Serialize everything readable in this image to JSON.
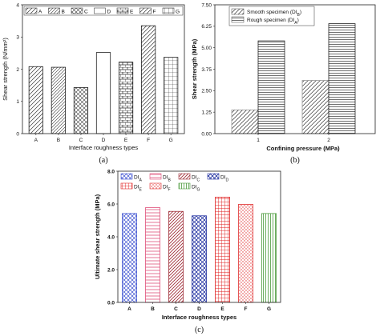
{
  "chart_data": [
    {
      "type": "bar",
      "caption": "(a)",
      "xlabel": "Interface  roughness types",
      "ylabel": "Shear strength (N/mm²)",
      "categories": [
        "A",
        "B",
        "C",
        "D",
        "E",
        "F",
        "G"
      ],
      "values": [
        2.08,
        2.06,
        1.43,
        2.52,
        2.22,
        3.35,
        2.37
      ],
      "ylim": [
        0,
        4
      ],
      "yticks": [
        "0",
        "1",
        "2",
        "3",
        "4"
      ],
      "legend": [
        "A",
        "B",
        "C",
        "D",
        "E",
        "F",
        "G"
      ],
      "legend_position": "top",
      "grid": false
    },
    {
      "type": "bar",
      "caption": "(b)",
      "xlabel": "Confining pressure (MPa)",
      "ylabel": "Shear strength (MPa)",
      "categories": [
        "1",
        "2"
      ],
      "series": [
        {
          "name": "Smooth specimen (DI",
          "name_sub": "B",
          "name_end": ")",
          "values": [
            1.38,
            3.1
          ]
        },
        {
          "name": "Rough specimen (DI",
          "name_sub": "A",
          "name_end": ")",
          "values": [
            5.4,
            6.4
          ]
        }
      ],
      "ylim": [
        0,
        7.5
      ],
      "yticks": [
        "0.00",
        "1.25",
        "2.50",
        "3.75",
        "5.00",
        "6.25",
        "7.50"
      ],
      "legend_position": "top-left",
      "grid": false
    },
    {
      "type": "bar",
      "caption": "(c)",
      "xlabel": "Interface roughness types",
      "ylabel": "Ultimate shear strength (MPa)",
      "categories": [
        "A",
        "B",
        "C",
        "D",
        "E",
        "F",
        "G"
      ],
      "values": [
        5.42,
        5.78,
        5.55,
        5.28,
        6.42,
        5.98,
        5.42
      ],
      "ylim": [
        0,
        8
      ],
      "yticks": [
        "0.0",
        "2.0",
        "4.0",
        "6.0",
        "8.0"
      ],
      "legend": [
        {
          "base": "DI",
          "sub": "A"
        },
        {
          "base": "DI",
          "sub": "B"
        },
        {
          "base": "DI",
          "sub": "C"
        },
        {
          "base": "DI",
          "sub": "D"
        },
        {
          "base": "DI",
          "sub": "E"
        },
        {
          "base": "DI",
          "sub": "F"
        },
        {
          "base": "DI",
          "sub": "G"
        }
      ],
      "legend_position": "top",
      "grid": false
    }
  ]
}
